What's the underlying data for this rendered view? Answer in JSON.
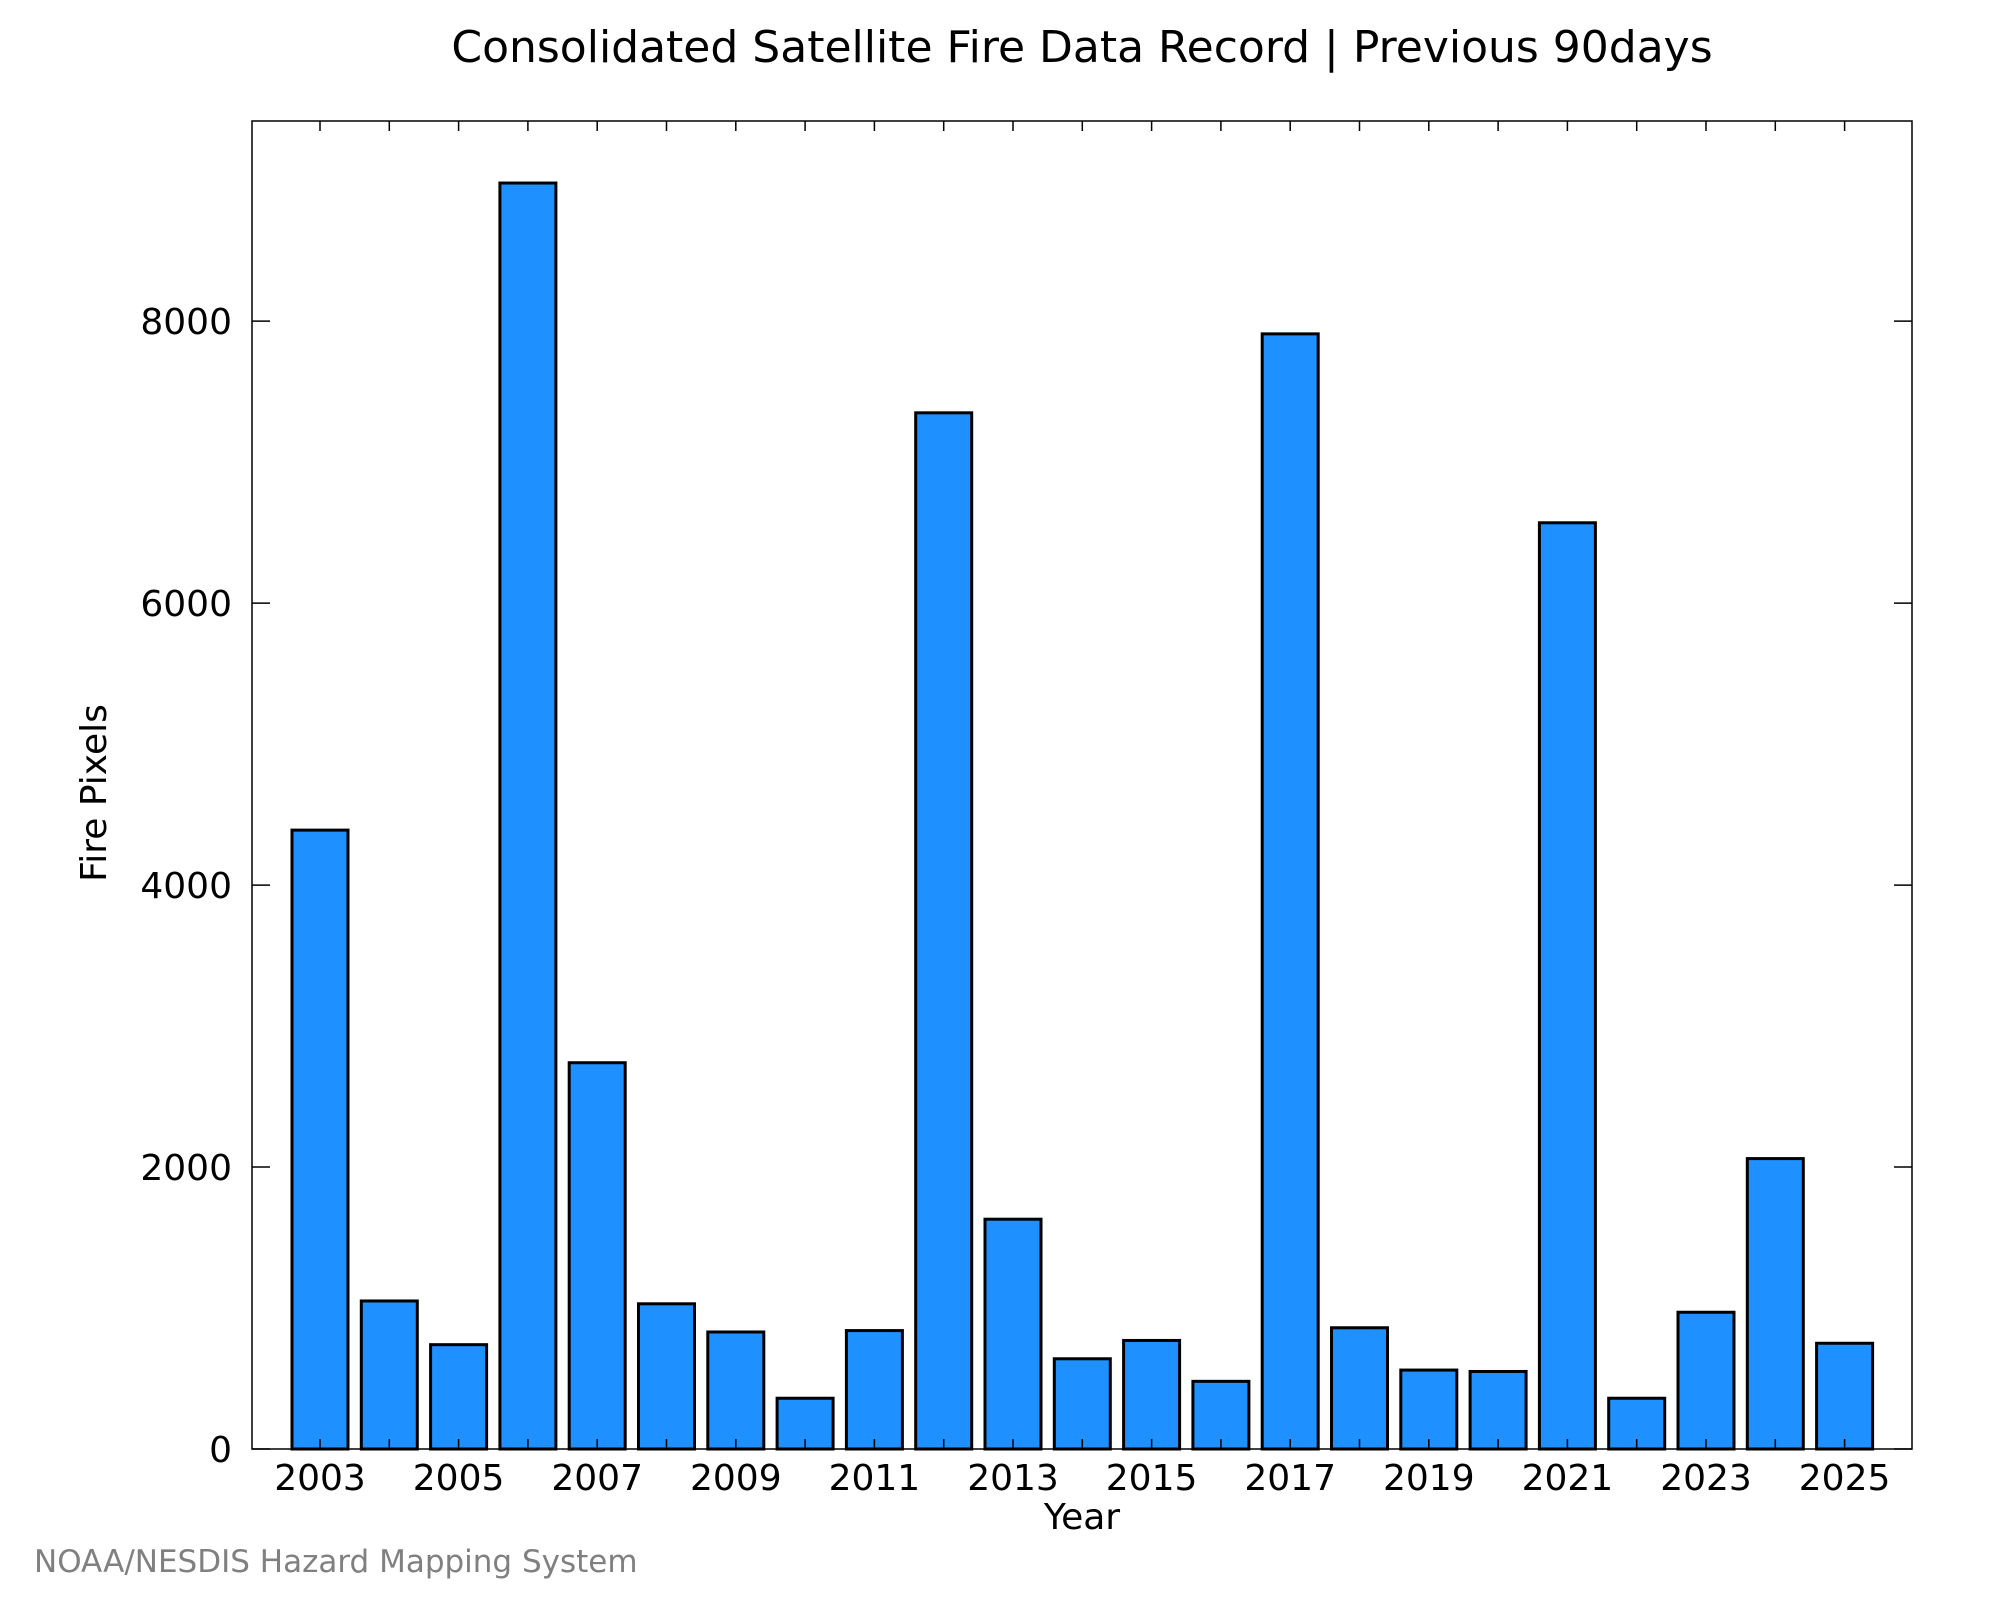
{
  "credit": "NOAA/NESDIS Hazard Mapping System",
  "chart_data": {
    "type": "bar",
    "title": "Consolidated Satellite Fire Data Record | Previous 90days",
    "xlabel": "Year",
    "ylabel": "Fire Pixels",
    "categories": [
      "2003",
      "2004",
      "2005",
      "2006",
      "2007",
      "2008",
      "2009",
      "2010",
      "2011",
      "2012",
      "2013",
      "2014",
      "2015",
      "2016",
      "2017",
      "2018",
      "2019",
      "2020",
      "2021",
      "2022",
      "2023",
      "2024",
      "2025"
    ],
    "x_tick_labels": [
      "2003",
      "2005",
      "2007",
      "2009",
      "2011",
      "2013",
      "2015",
      "2017",
      "2019",
      "2021",
      "2023",
      "2025"
    ],
    "values": [
      4390,
      1050,
      740,
      8980,
      2740,
      1030,
      830,
      360,
      840,
      7350,
      1630,
      640,
      770,
      480,
      7910,
      860,
      560,
      550,
      6570,
      360,
      970,
      2060,
      750
    ],
    "ylim": [
      0,
      9420
    ],
    "y_ticks": [
      0,
      2000,
      4000,
      6000,
      8000
    ],
    "bar_color": "#1e90ff",
    "bar_edge_color": "#000000",
    "grid": false,
    "legend": "none"
  }
}
